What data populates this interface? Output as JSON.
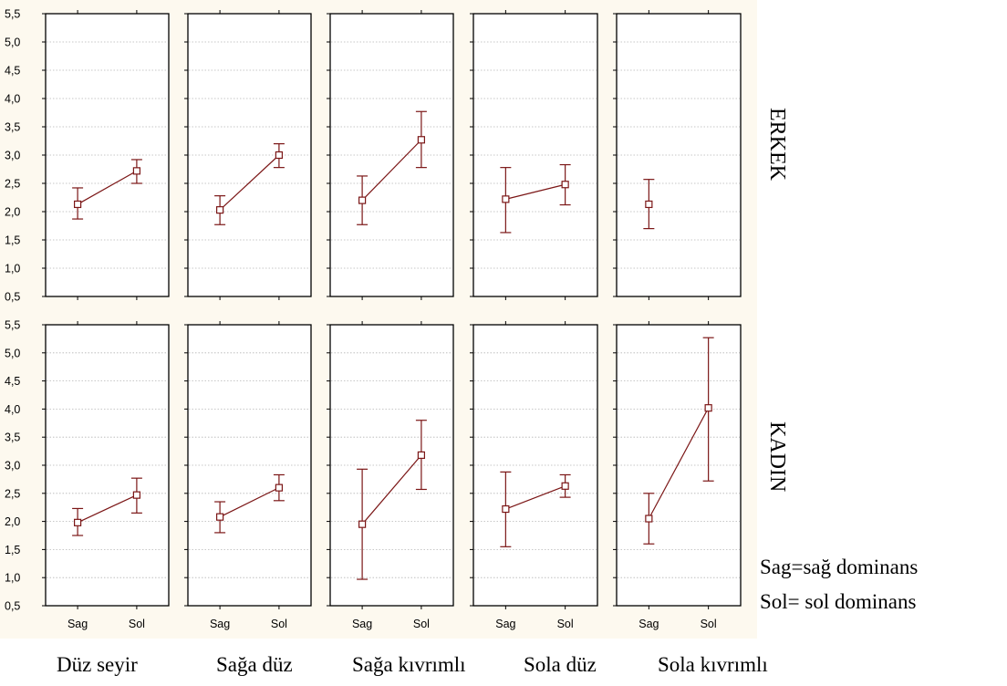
{
  "chart_data": {
    "type": "line",
    "layout": "5 columns x 2 rows of panels",
    "y_ticks": [
      "0,5",
      "1,0",
      "1,5",
      "2,0",
      "2,5",
      "3,0",
      "3,5",
      "4,0",
      "4,5",
      "5,0",
      "5,5"
    ],
    "ylim": [
      0.5,
      5.5
    ],
    "x_categories": [
      "Sag",
      "Sol"
    ],
    "grid": "horizontal dotted",
    "colors": {
      "series": "#7b1616",
      "background": "#fdf9ef",
      "panel": "#ffffff"
    },
    "columns": [
      "Düz seyir",
      "Sağa düz",
      "Sağa kıvrımlı",
      "Sola düz",
      "Sola kıvrımlı"
    ],
    "rows": [
      {
        "label": "ERKEK",
        "panels": [
          {
            "column": "Düz seyir",
            "points": [
              {
                "x": "Sag",
                "mean": 2.13,
                "low": 1.87,
                "high": 2.42
              },
              {
                "x": "Sol",
                "mean": 2.72,
                "low": 2.5,
                "high": 2.92
              }
            ]
          },
          {
            "column": "Sağa düz",
            "points": [
              {
                "x": "Sag",
                "mean": 2.03,
                "low": 1.77,
                "high": 2.28
              },
              {
                "x": "Sol",
                "mean": 3.0,
                "low": 2.78,
                "high": 3.2
              }
            ]
          },
          {
            "column": "Sağa kıvrımlı",
            "points": [
              {
                "x": "Sag",
                "mean": 2.2,
                "low": 1.77,
                "high": 2.63
              },
              {
                "x": "Sol",
                "mean": 3.27,
                "low": 2.78,
                "high": 3.77
              }
            ]
          },
          {
            "column": "Sola düz",
            "points": [
              {
                "x": "Sag",
                "mean": 2.22,
                "low": 1.63,
                "high": 2.78
              },
              {
                "x": "Sol",
                "mean": 2.48,
                "low": 2.12,
                "high": 2.83
              }
            ]
          },
          {
            "column": "Sola kıvrımlı",
            "points": [
              {
                "x": "Sag",
                "mean": 2.13,
                "low": 1.7,
                "high": 2.57
              }
            ]
          }
        ]
      },
      {
        "label": "KADIN",
        "panels": [
          {
            "column": "Düz seyir",
            "points": [
              {
                "x": "Sag",
                "mean": 1.98,
                "low": 1.75,
                "high": 2.23
              },
              {
                "x": "Sol",
                "mean": 2.47,
                "low": 2.15,
                "high": 2.77
              }
            ]
          },
          {
            "column": "Sağa düz",
            "points": [
              {
                "x": "Sag",
                "mean": 2.08,
                "low": 1.8,
                "high": 2.35
              },
              {
                "x": "Sol",
                "mean": 2.6,
                "low": 2.37,
                "high": 2.83
              }
            ]
          },
          {
            "column": "Sağa kıvrımlı",
            "points": [
              {
                "x": "Sag",
                "mean": 1.95,
                "low": 0.97,
                "high": 2.93
              },
              {
                "x": "Sol",
                "mean": 3.18,
                "low": 2.57,
                "high": 3.8
              }
            ]
          },
          {
            "column": "Sola düz",
            "points": [
              {
                "x": "Sag",
                "mean": 2.22,
                "low": 1.55,
                "high": 2.88
              },
              {
                "x": "Sol",
                "mean": 2.63,
                "low": 2.43,
                "high": 2.83
              }
            ]
          },
          {
            "column": "Sola kıvrımlı",
            "points": [
              {
                "x": "Sag",
                "mean": 2.05,
                "low": 1.6,
                "high": 2.5
              },
              {
                "x": "Sol",
                "mean": 4.02,
                "low": 2.72,
                "high": 5.27
              }
            ]
          }
        ]
      }
    ]
  },
  "legend": {
    "line1": "Sag=sağ dominans",
    "line2": "Sol= sol dominans"
  }
}
